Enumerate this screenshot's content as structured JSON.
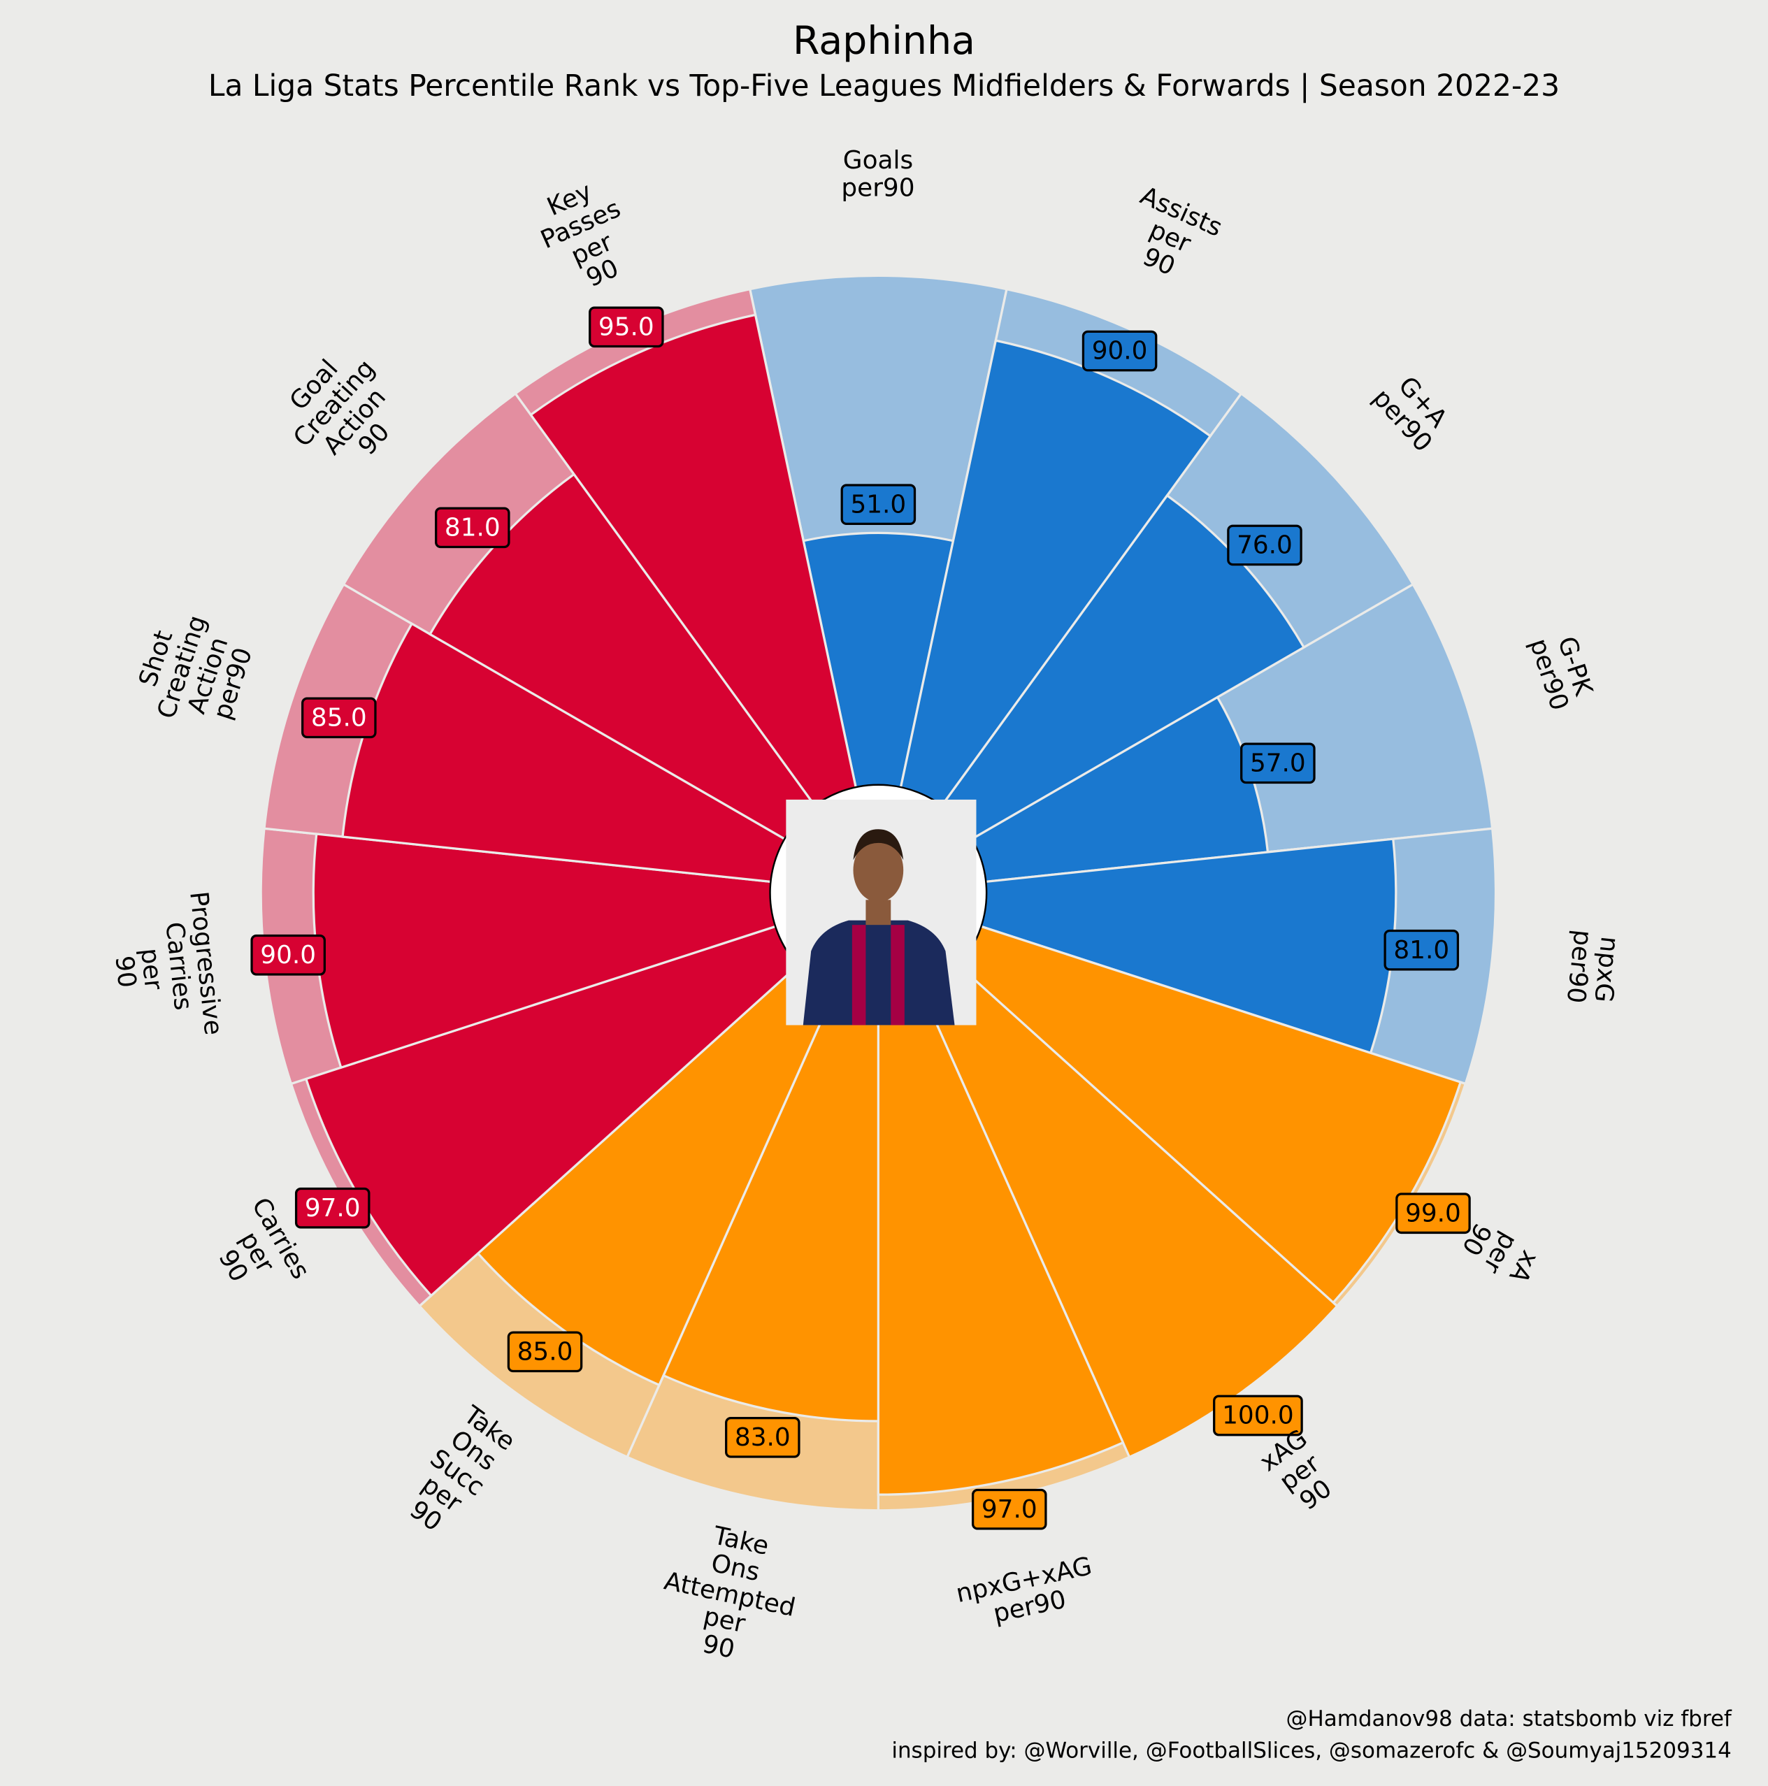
{
  "chart_data": {
    "type": "pizza",
    "title": "Raphinha",
    "subtitle": "La Liga Stats Percentile Rank vs Top-Five Leagues Midfielders & Forwards | Season 2022-23",
    "credits": [
      "@Hamdanov98 data: statsbomb viz fbref",
      "inspired by: @Worville, @FootballSlices, @somazerofc & @Soumyaj15209314"
    ],
    "categories": [
      "Goals\nper90",
      "Assists\nper\n90",
      "G+A\nper90",
      "G-PK\nper90",
      "npxG\nper90",
      "xA\nper\n90",
      "xAG\nper\n90",
      "npxG+xAG\nper90",
      "Take\nOns\nAttempted\nper\n90",
      "Take\nOns\nSucc\nper\n90",
      "Carries\nper\n90",
      "Progressive\nCarries\nper\n90",
      "Shot\nCreating\nAction\nper90",
      "Goal\nCreating\nAction\n90",
      "Key\nPasses\nper\n90"
    ],
    "values": [
      51,
      90,
      76,
      57,
      81,
      99,
      100,
      97,
      83,
      85,
      97,
      90,
      85,
      81,
      95
    ],
    "value_labels": [
      "51.0",
      "90.0",
      "76.0",
      "57.0",
      "81.0",
      "99.0",
      "100.0",
      "97.0",
      "83.0",
      "85.0",
      "97.0",
      "90.0",
      "85.0",
      "81.0",
      "95.0"
    ],
    "colors": [
      "#1a78cf",
      "#1a78cf",
      "#1a78cf",
      "#1a78cf",
      "#1a78cf",
      "#ff9300",
      "#ff9300",
      "#ff9300",
      "#ff9300",
      "#ff9300",
      "#d70232",
      "#d70232",
      "#d70232",
      "#d70232",
      "#d70232"
    ],
    "text_colors": [
      "#000000",
      "#000000",
      "#000000",
      "#000000",
      "#000000",
      "#000000",
      "#000000",
      "#000000",
      "#000000",
      "#000000",
      "#ffffff",
      "#ffffff",
      "#ffffff",
      "#ffffff",
      "#ffffff"
    ],
    "ylim": [
      0,
      100
    ]
  }
}
